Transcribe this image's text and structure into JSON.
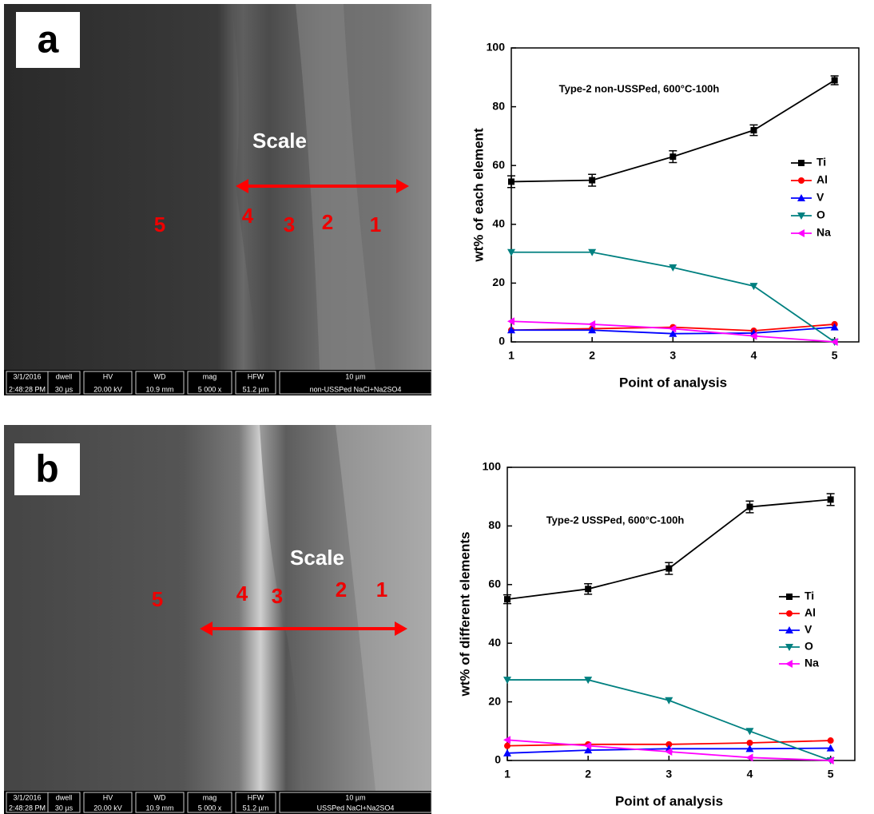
{
  "panels": [
    {
      "label": "a",
      "scale_text": "Scale",
      "points": [
        "5",
        "4",
        "3",
        "2",
        "1"
      ],
      "info": [
        [
          "3/1/2016",
          "2:48:28 PM"
        ],
        [
          "dwell",
          "30 µs"
        ],
        [
          "HV",
          "20.00 kV"
        ],
        [
          "WD",
          "10.9 mm"
        ],
        [
          "mag",
          "5 000 x"
        ],
        [
          "HFW",
          "51.2 µm"
        ],
        [
          "10 µm",
          "non-USSPed NaCl+Na2SO4"
        ]
      ]
    },
    {
      "label": "b",
      "scale_text": "Scale",
      "points": [
        "5",
        "4",
        "3",
        "2",
        "1"
      ],
      "info": [
        [
          "3/1/2016",
          "2:48:28 PM"
        ],
        [
          "dwell",
          "30 µs"
        ],
        [
          "HV",
          "20.00 kV"
        ],
        [
          "WD",
          "10.9 mm"
        ],
        [
          "mag",
          "5 000 x"
        ],
        [
          "HFW",
          "51.2 µm"
        ],
        [
          "10 µm",
          "USSPed NaCl+Na2SO4"
        ]
      ]
    }
  ],
  "chart_data": [
    {
      "type": "line",
      "annotation": "Type-2 non-USSPed, 600°C-100h",
      "x_label": "Point of analysis",
      "y_label": "wt% of each element",
      "x": [
        1,
        2,
        3,
        4,
        5
      ],
      "xlim": [
        1,
        5.3
      ],
      "xticks": [
        1,
        2,
        3,
        4,
        5
      ],
      "ylim": [
        0,
        100
      ],
      "yticks": [
        0,
        20,
        40,
        60,
        80,
        100
      ],
      "legend": "right",
      "series": [
        {
          "name": "Ti",
          "color": "#000000",
          "marker": "square",
          "values": [
            54.5,
            55,
            63,
            72,
            89
          ],
          "errors": [
            2,
            2,
            2,
            1.8,
            1.5
          ]
        },
        {
          "name": "Al",
          "color": "#ff0000",
          "marker": "circle",
          "values": [
            4,
            4.5,
            5,
            3.8,
            6
          ]
        },
        {
          "name": "V",
          "color": "#0000ff",
          "marker": "up",
          "values": [
            4,
            4,
            2.8,
            3,
            5
          ]
        },
        {
          "name": "O",
          "color": "#008080",
          "marker": "down",
          "values": [
            30.5,
            30.5,
            25.3,
            19,
            0
          ]
        },
        {
          "name": "Na",
          "color": "#ff00ff",
          "marker": "left",
          "values": [
            7,
            6,
            4.5,
            2,
            0
          ]
        }
      ]
    },
    {
      "type": "line",
      "annotation": "Type-2 USSPed, 600°C-100h",
      "x_label": "Point of analysis",
      "y_label": "wt% of different elements",
      "x": [
        1,
        2,
        3,
        4,
        5
      ],
      "xlim": [
        1,
        5.3
      ],
      "xticks": [
        1,
        2,
        3,
        4,
        5
      ],
      "ylim": [
        0,
        100
      ],
      "yticks": [
        0,
        20,
        40,
        60,
        80,
        100
      ],
      "legend": "right",
      "series": [
        {
          "name": "Ti",
          "color": "#000000",
          "marker": "square",
          "values": [
            55,
            58.5,
            65.5,
            86.5,
            89
          ],
          "errors": [
            1.5,
            1.8,
            2,
            2,
            2
          ]
        },
        {
          "name": "Al",
          "color": "#ff0000",
          "marker": "circle",
          "values": [
            5,
            5.5,
            5.5,
            6,
            6.8
          ]
        },
        {
          "name": "V",
          "color": "#0000ff",
          "marker": "up",
          "values": [
            2.5,
            3.5,
            4,
            4,
            4.2
          ]
        },
        {
          "name": "O",
          "color": "#008080",
          "marker": "down",
          "values": [
            27.5,
            27.5,
            20.5,
            10,
            0
          ]
        },
        {
          "name": "Na",
          "color": "#ff00ff",
          "marker": "left",
          "values": [
            7,
            5,
            3,
            1,
            0
          ]
        }
      ]
    }
  ]
}
